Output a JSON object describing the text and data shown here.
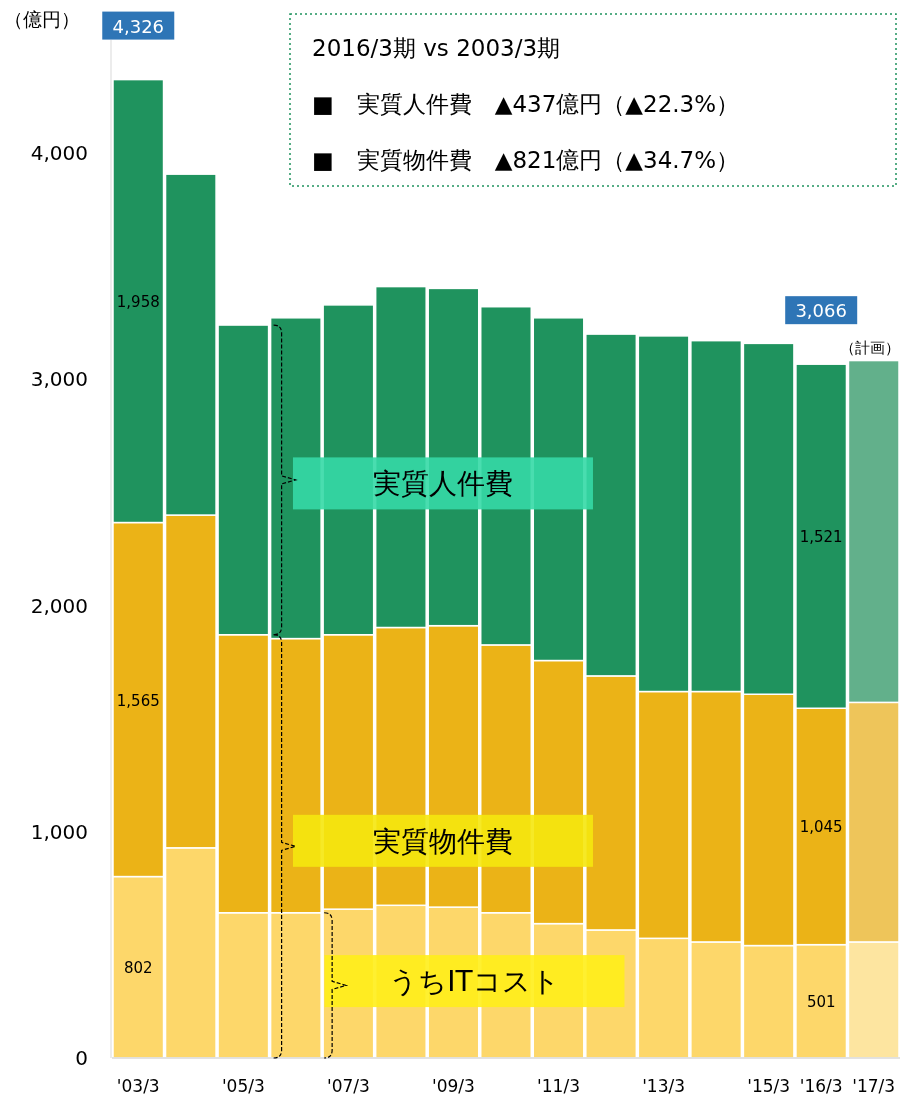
{
  "chart_data": {
    "type": "bar",
    "stacked": true,
    "ylabel": "（億円）",
    "categories": [
      "'03/3",
      null,
      "'05/3",
      null,
      "'07/3",
      null,
      "'09/3",
      null,
      "'11/3",
      null,
      "'13/3",
      null,
      "'15/3",
      "'16/3",
      "'17/3"
    ],
    "series": [
      {
        "name": "うちITコスト",
        "colors": [
          "#fdd76a",
          "#fdd76a",
          "#fdd76a",
          "#fdd76a",
          "#fdd76a",
          "#fdd76a",
          "#fdd76a",
          "#fdd76a",
          "#fdd76a",
          "#fdd76a",
          "#fdd76a",
          "#fdd76a",
          "#fdd76a",
          "#fdd76a",
          "#fde5a0"
        ],
        "values": [
          802,
          929,
          642,
          642,
          658,
          675,
          667,
          642,
          594,
          566,
          529,
          513,
          497,
          501,
          513
        ],
        "value_labels": [
          "802",
          null,
          null,
          null,
          null,
          null,
          null,
          null,
          null,
          null,
          null,
          null,
          null,
          "501",
          null
        ]
      },
      {
        "name": "実質物件費",
        "colors": [
          "#ebb317",
          "#ebb317",
          "#ebb317",
          "#ebb317",
          "#ebb317",
          "#ebb317",
          "#ebb317",
          "#ebb317",
          "#ebb317",
          "#ebb317",
          "#ebb317",
          "#ebb317",
          "#ebb317",
          "#ebb317",
          "#eec55a"
        ],
        "values": [
          1565,
          1471,
          1229,
          1212,
          1213,
          1228,
          1244,
          1184,
          1163,
          1123,
          1091,
          1107,
          1111,
          1045,
          1059
        ],
        "value_labels": [
          "1,565",
          null,
          null,
          null,
          null,
          null,
          null,
          null,
          null,
          null,
          null,
          null,
          null,
          "1,045",
          null
        ]
      },
      {
        "name": "実質人件費",
        "colors": [
          "#1f935e",
          "#1f935e",
          "#1f935e",
          "#1f935e",
          "#1f935e",
          "#1f935e",
          "#1f935e",
          "#1f935e",
          "#1f935e",
          "#1f935e",
          "#1f935e",
          "#1f935e",
          "#1f935e",
          "#1f935e",
          "#62b08b"
        ],
        "values": [
          1958,
          1507,
          1369,
          1418,
          1458,
          1507,
          1491,
          1495,
          1515,
          1511,
          1572,
          1551,
          1551,
          1521,
          1511
        ],
        "value_labels": [
          "1,958",
          null,
          null,
          null,
          null,
          null,
          null,
          null,
          null,
          null,
          null,
          null,
          null,
          "1,521",
          null
        ]
      }
    ],
    "totals": [
      "4,326",
      null,
      null,
      null,
      null,
      null,
      null,
      null,
      null,
      null,
      null,
      null,
      null,
      "3,066",
      null
    ],
    "ylim": [
      0,
      4500
    ],
    "yticks": [
      0,
      {
        "value": 1000,
        "label": "1,000"
      },
      {
        "value": 2000,
        "label": "2,000"
      },
      {
        "value": 3000,
        "label": "3,000"
      },
      {
        "value": 4000,
        "label": "4,000"
      }
    ],
    "annotations": [
      "2016/3期 vs 2003/3期",
      "■　実質人件費　▲437億円（▲22.3%）",
      "■　実質物件費　▲821億円（▲34.7%）",
      "（計画）"
    ]
  }
}
